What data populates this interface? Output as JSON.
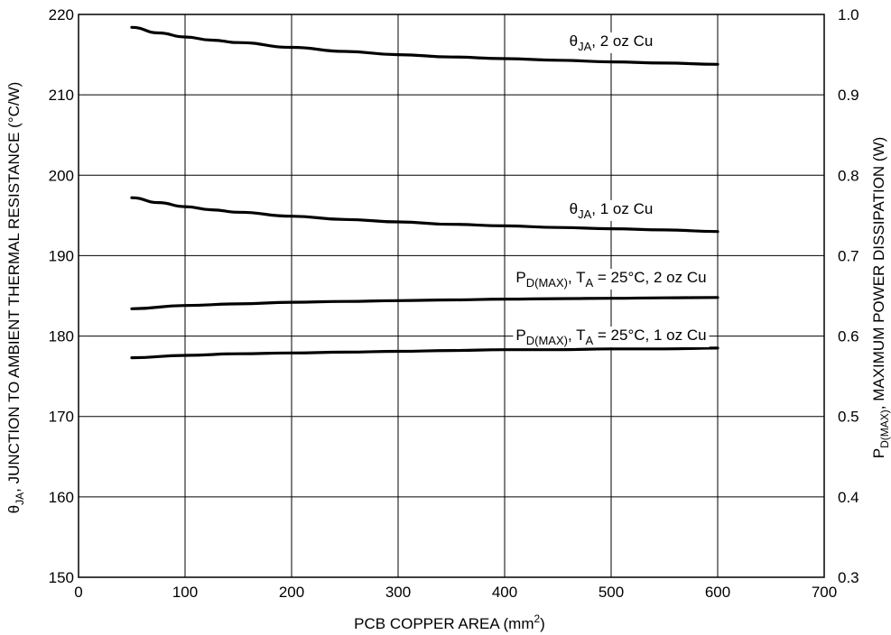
{
  "chart_data": {
    "type": "line",
    "xlabel_main": "PCB COPPER AREA (mm",
    "xlabel_sup": "2",
    "xlabel_end": ")",
    "ylabel_left": {
      "symbol": "θ",
      "sub": "JA",
      "rest": ", JUNCTION TO AMBIENT THERMAL RESISTANCE (°C/W)"
    },
    "ylabel_right": {
      "symbol": "P",
      "sub": "D(MAX)",
      "rest": ", MAXIMUM POWER DISSIPATION (W)"
    },
    "xlim": [
      0,
      700
    ],
    "ylim_left": [
      150,
      220
    ],
    "ylim_right": [
      0.3,
      1.0
    ],
    "x_ticks": [
      "0",
      "100",
      "200",
      "300",
      "400",
      "500",
      "600",
      "700"
    ],
    "y_left_ticks": [
      "150",
      "160",
      "170",
      "180",
      "190",
      "200",
      "210",
      "220"
    ],
    "y_right_ticks": [
      "0.3",
      "0.4",
      "0.5",
      "0.6",
      "0.7",
      "0.8",
      "0.9",
      "1.0"
    ],
    "grid": true,
    "series": [
      {
        "axis": "left",
        "x": [
          50,
          75,
          100,
          125,
          150,
          200,
          250,
          300,
          350,
          400,
          450,
          500,
          550,
          600
        ],
        "y": [
          218.4,
          217.7,
          217.2,
          216.8,
          216.5,
          215.9,
          215.4,
          215.0,
          214.7,
          214.5,
          214.3,
          214.1,
          213.95,
          213.8
        ],
        "label": {
          "main": "θ",
          "sub": "JA",
          "rest": ", 2 oz Cu"
        }
      },
      {
        "axis": "left",
        "x": [
          50,
          75,
          100,
          125,
          150,
          200,
          250,
          300,
          350,
          400,
          450,
          500,
          550,
          600
        ],
        "y": [
          197.2,
          196.6,
          196.1,
          195.7,
          195.4,
          194.9,
          194.5,
          194.2,
          193.9,
          193.7,
          193.5,
          193.35,
          193.2,
          193.0
        ],
        "label": {
          "main": "θ",
          "sub": "JA",
          "rest": ", 1 oz Cu"
        }
      },
      {
        "axis": "right",
        "x": [
          50,
          100,
          150,
          200,
          250,
          300,
          350,
          400,
          450,
          500,
          550,
          600
        ],
        "y": [
          0.634,
          0.638,
          0.64,
          0.642,
          0.643,
          0.644,
          0.645,
          0.646,
          0.6465,
          0.647,
          0.6475,
          0.648
        ],
        "label": {
          "p": "P",
          "psub": "D(MAX)",
          "mid": ", T",
          "tsub": "A",
          "rest": " = 25°C, 2 oz Cu"
        }
      },
      {
        "axis": "right",
        "x": [
          50,
          100,
          150,
          200,
          250,
          300,
          350,
          400,
          450,
          500,
          550,
          600
        ],
        "y": [
          0.573,
          0.576,
          0.578,
          0.579,
          0.58,
          0.581,
          0.582,
          0.583,
          0.583,
          0.584,
          0.584,
          0.585
        ],
        "label": {
          "p": "P",
          "psub": "D(MAX)",
          "mid": ", T",
          "tsub": "A",
          "rest": " = 25°C, 1 oz Cu"
        }
      }
    ]
  }
}
